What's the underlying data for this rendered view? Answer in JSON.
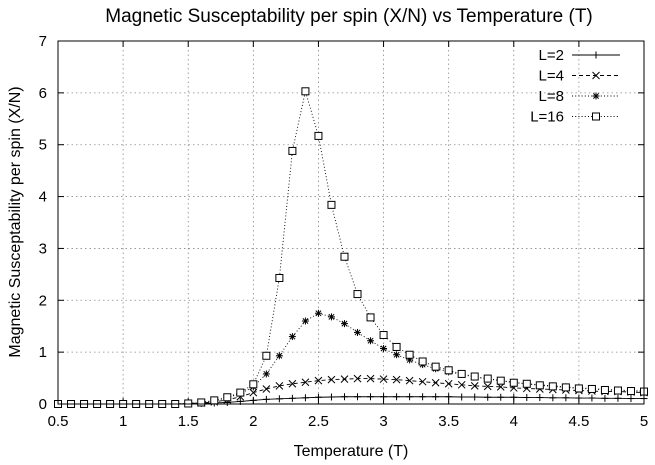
{
  "chart_data": {
    "type": "line",
    "title": "Magnetic Susceptability per spin (X/N) vs Temperature (T)",
    "xlabel": "Temperature (T)",
    "ylabel": "Magnetic Susceptability per spin (X/N)",
    "xlim": [
      0.5,
      5
    ],
    "ylim": [
      0,
      7
    ],
    "xticks": [
      "0.5",
      "1",
      "1.5",
      "2",
      "2.5",
      "3",
      "3.5",
      "4",
      "4.5",
      "5"
    ],
    "yticks": [
      "0",
      "1",
      "2",
      "3",
      "4",
      "5",
      "6",
      "7"
    ],
    "grid": true,
    "legend_position": "top-right",
    "series": [
      {
        "name": "L=2",
        "marker": "plus",
        "line": "solid",
        "x": [
          0.5,
          0.6,
          0.7,
          0.8,
          0.9,
          1.0,
          1.1,
          1.2,
          1.3,
          1.4,
          1.5,
          1.6,
          1.7,
          1.8,
          1.9,
          2.0,
          2.1,
          2.2,
          2.3,
          2.4,
          2.5,
          2.6,
          2.7,
          2.8,
          2.9,
          3.0,
          3.1,
          3.2,
          3.3,
          3.4,
          3.5,
          3.6,
          3.7,
          3.8,
          3.9,
          4.0,
          4.1,
          4.2,
          4.3,
          4.4,
          4.5,
          4.6,
          4.7,
          4.8,
          4.9,
          5.0
        ],
        "y": [
          0,
          0,
          0,
          0,
          0,
          0,
          0,
          0,
          0,
          0,
          0.005,
          0.01,
          0.02,
          0.03,
          0.05,
          0.07,
          0.09,
          0.1,
          0.11,
          0.12,
          0.13,
          0.135,
          0.14,
          0.14,
          0.14,
          0.14,
          0.14,
          0.14,
          0.14,
          0.14,
          0.14,
          0.135,
          0.135,
          0.13,
          0.13,
          0.13,
          0.125,
          0.125,
          0.12,
          0.12,
          0.115,
          0.115,
          0.11,
          0.11,
          0.105,
          0.105
        ]
      },
      {
        "name": "L=4",
        "marker": "cross",
        "line": "dashed",
        "x": [
          0.5,
          0.6,
          0.7,
          0.8,
          0.9,
          1.0,
          1.1,
          1.2,
          1.3,
          1.4,
          1.5,
          1.6,
          1.7,
          1.8,
          1.9,
          2.0,
          2.1,
          2.2,
          2.3,
          2.4,
          2.5,
          2.6,
          2.7,
          2.8,
          2.9,
          3.0,
          3.1,
          3.2,
          3.3,
          3.4,
          3.5,
          3.6,
          3.7,
          3.8,
          3.9,
          4.0,
          4.1,
          4.2,
          4.3,
          4.4,
          4.5,
          4.6,
          4.7,
          4.8,
          4.9,
          5.0
        ],
        "y": [
          0,
          0,
          0,
          0,
          0,
          0,
          0,
          0,
          0,
          0,
          0.01,
          0.02,
          0.04,
          0.08,
          0.14,
          0.22,
          0.29,
          0.35,
          0.39,
          0.42,
          0.45,
          0.47,
          0.48,
          0.49,
          0.49,
          0.48,
          0.47,
          0.45,
          0.43,
          0.41,
          0.39,
          0.37,
          0.35,
          0.34,
          0.33,
          0.31,
          0.3,
          0.29,
          0.28,
          0.27,
          0.26,
          0.25,
          0.24,
          0.24,
          0.23,
          0.22
        ]
      },
      {
        "name": "L=8",
        "marker": "star",
        "line": "dotted",
        "x": [
          0.5,
          0.6,
          0.7,
          0.8,
          0.9,
          1.0,
          1.1,
          1.2,
          1.3,
          1.4,
          1.5,
          1.6,
          1.7,
          1.8,
          1.9,
          2.0,
          2.1,
          2.2,
          2.3,
          2.4,
          2.5,
          2.6,
          2.7,
          2.8,
          2.9,
          3.0,
          3.1,
          3.2,
          3.3,
          3.4,
          3.5,
          3.6,
          3.7,
          3.8,
          3.9,
          4.0,
          4.1,
          4.2,
          4.3,
          4.4,
          4.5,
          4.6,
          4.7,
          4.8,
          4.9,
          5.0
        ],
        "y": [
          0,
          0,
          0,
          0,
          0,
          0,
          0,
          0,
          0,
          0,
          0.01,
          0.03,
          0.06,
          0.12,
          0.2,
          0.33,
          0.58,
          0.93,
          1.3,
          1.6,
          1.75,
          1.68,
          1.55,
          1.38,
          1.22,
          1.07,
          0.95,
          0.85,
          0.76,
          0.68,
          0.62,
          0.57,
          0.52,
          0.48,
          0.45,
          0.42,
          0.39,
          0.37,
          0.35,
          0.33,
          0.31,
          0.3,
          0.28,
          0.27,
          0.26,
          0.25
        ]
      },
      {
        "name": "L=16",
        "marker": "square",
        "line": "dotted",
        "x": [
          0.5,
          0.6,
          0.7,
          0.8,
          0.9,
          1.0,
          1.1,
          1.2,
          1.3,
          1.4,
          1.5,
          1.6,
          1.7,
          1.8,
          1.9,
          2.0,
          2.1,
          2.2,
          2.3,
          2.4,
          2.5,
          2.6,
          2.7,
          2.8,
          2.9,
          3.0,
          3.1,
          3.2,
          3.3,
          3.4,
          3.5,
          3.6,
          3.7,
          3.8,
          3.9,
          4.0,
          4.1,
          4.2,
          4.3,
          4.4,
          4.5,
          4.6,
          4.7,
          4.8,
          4.9,
          5.0
        ],
        "y": [
          0,
          0,
          0,
          0,
          0,
          0,
          0,
          0,
          0,
          0,
          0.01,
          0.03,
          0.07,
          0.13,
          0.22,
          0.38,
          0.93,
          2.43,
          4.88,
          6.03,
          5.17,
          3.84,
          2.84,
          2.12,
          1.67,
          1.33,
          1.1,
          0.95,
          0.82,
          0.72,
          0.65,
          0.58,
          0.53,
          0.49,
          0.45,
          0.41,
          0.39,
          0.36,
          0.34,
          0.32,
          0.3,
          0.29,
          0.27,
          0.26,
          0.25,
          0.24
        ]
      }
    ]
  }
}
